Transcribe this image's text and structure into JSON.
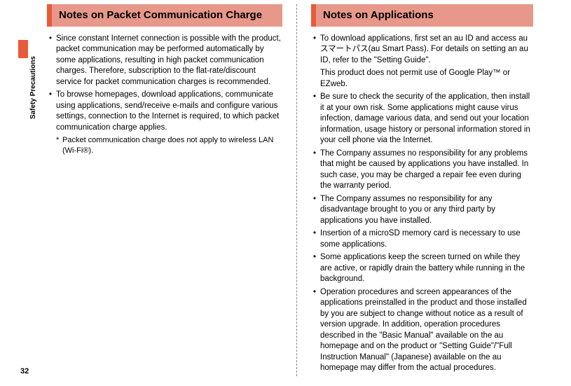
{
  "sidebar": {
    "label": "Safety Precautions"
  },
  "pageNumber": "32",
  "leftColumn": {
    "header": "Notes on Packet Communication Charge",
    "bullets": [
      "Since constant Internet connection is possible with the product, packet communication may be performed automatically by some applications, resulting in high packet communication charges. Therefore, subscription to the flat-rate/discount service for packet communication charges is recommended.",
      "To browse homepages, download applications, communicate using applications, send/receive e-mails and configure various settings, connection to the Internet is required, to which packet communication charge applies."
    ],
    "subnote": "Packet communication charge does not apply to wireless LAN (Wi-Fi®)."
  },
  "rightColumn": {
    "header": "Notes on Applications",
    "bullets": [
      "To download applications, first set an au ID and access au スマートパス(au Smart Pass). For details on setting an au ID, refer to the \"Setting Guide\".",
      "Be sure to check the security of the application, then install it at your own risk. Some applications might cause virus infection, damage various data, and send out your location information, usage history or personal information stored in your cell phone via the Internet.",
      "The Company assumes no responsibility for any problems that might be caused by applications you have installed. In such case, you may be charged a repair fee even during the warranty period.",
      "The Company assumes no responsibility for any disadvantage brought to you or any third party by applications you have installed.",
      "Insertion of a microSD memory card is necessary to use some applications.",
      "Some applications keep the screen turned on while they are active, or rapidly drain the battery while running in the background.",
      "Operation procedures and screen appearances of the applications preinstalled in the product and those installed by you are subject to change without notice as a result of version upgrade. In addition, operation procedures described in the \"Basic Manual\" available on the au homepage and on the product or \"Setting Guide\"/\"Full Instruction Manual\" (Japanese) available on the au homepage may differ from the actual procedures."
    ],
    "continuation": "This product does not permit use of Google Play™ or EZweb."
  }
}
